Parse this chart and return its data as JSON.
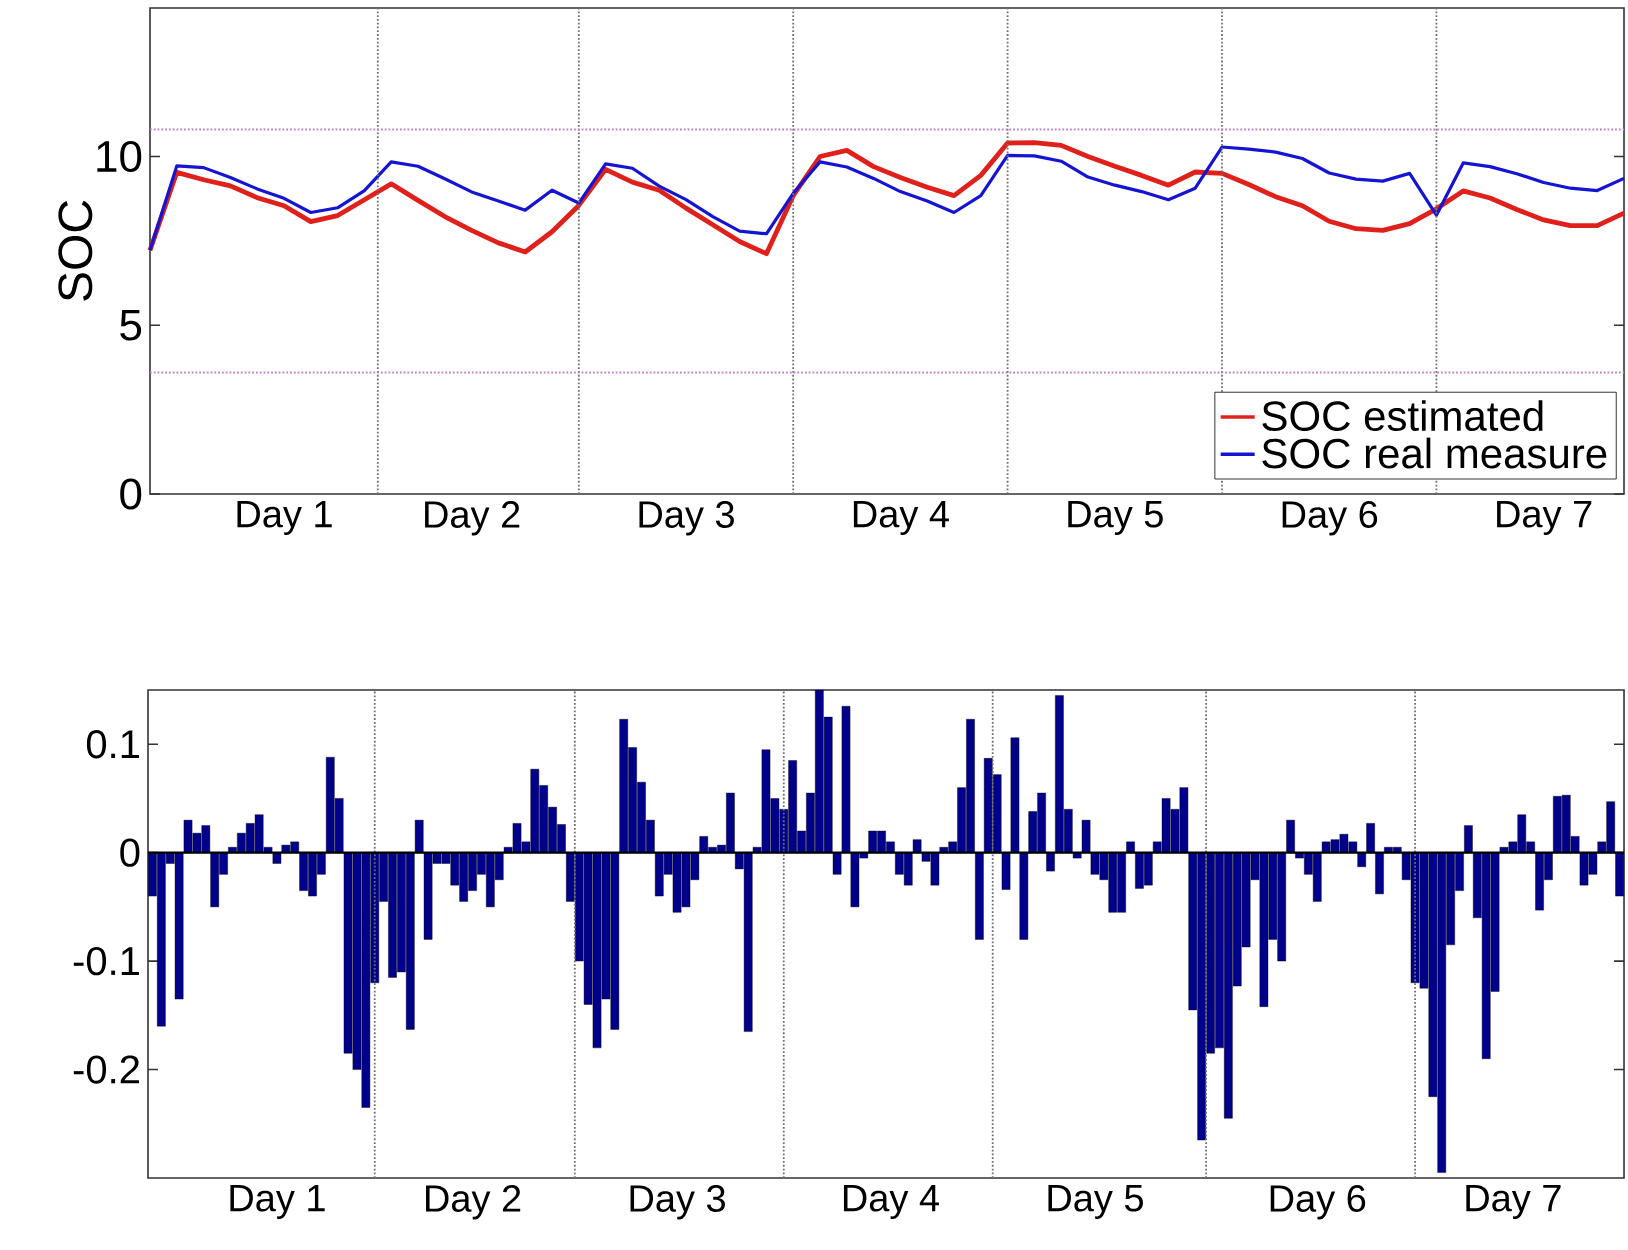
{
  "chart_data": [
    {
      "type": "line",
      "ylabel": "SOC",
      "ylim": [
        0,
        14.4
      ],
      "yticks": [
        0,
        5,
        10
      ],
      "categories": [
        null,
        null,
        null,
        null,
        null,
        "Day 1",
        null,
        null,
        null,
        null,
        null,
        null,
        "Day 2",
        null,
        null,
        null,
        null,
        null,
        null,
        null,
        "Day 3",
        null,
        null,
        null,
        null,
        null,
        null,
        null,
        "Day 4",
        null,
        null,
        null,
        null,
        null,
        null,
        null,
        "Day 5",
        null,
        null,
        null,
        null,
        null,
        null,
        null,
        "Day 6",
        null,
        null,
        null,
        null,
        null,
        null,
        null,
        "Day 7",
        null,
        null,
        null
      ],
      "ref_lines": [
        {
          "axis": "y",
          "value": 10.8,
          "color": "#c080c8",
          "line_style": "dotted"
        },
        {
          "axis": "y",
          "value": 3.6,
          "color": "#c080c8",
          "line_style": "dotted"
        }
      ],
      "legend": "bottom right",
      "series": [
        {
          "name": "SOC estimated",
          "color": "#e0201b",
          "values": [
            7.22,
            9.53,
            9.31,
            9.13,
            8.78,
            8.54,
            8.07,
            8.25,
            8.72,
            9.19,
            8.7,
            8.22,
            7.81,
            7.44,
            7.17,
            7.77,
            8.55,
            9.62,
            9.24,
            9.0,
            8.47,
            7.98,
            7.48,
            7.12,
            8.84,
            10.0,
            10.18,
            9.7,
            9.38,
            9.09,
            8.84,
            9.44,
            10.4,
            10.41,
            10.33,
            10.0,
            9.71,
            9.44,
            9.15,
            9.54,
            9.5,
            9.17,
            8.81,
            8.54,
            8.08,
            7.86,
            7.81,
            8.01,
            8.45,
            8.98,
            8.77,
            8.43,
            8.12,
            7.95,
            7.95,
            8.32
          ]
        },
        {
          "name": "SOC real measure",
          "color": "#1414d2",
          "values": [
            7.22,
            9.72,
            9.67,
            9.38,
            9.04,
            8.76,
            8.34,
            8.48,
            8.99,
            9.84,
            9.71,
            9.34,
            8.95,
            8.68,
            8.41,
            9.0,
            8.62,
            9.78,
            9.65,
            9.12,
            8.72,
            8.22,
            7.79,
            7.71,
            8.91,
            9.84,
            9.69,
            9.35,
            8.96,
            8.68,
            8.34,
            8.84,
            10.03,
            10.02,
            9.86,
            9.39,
            9.15,
            8.96,
            8.72,
            9.06,
            10.28,
            10.22,
            10.13,
            9.94,
            9.51,
            9.33,
            9.27,
            9.5,
            8.26,
            9.81,
            9.7,
            9.49,
            9.23,
            9.06,
            8.99,
            9.35
          ]
        }
      ]
    },
    {
      "type": "bar",
      "ylim": [
        -0.3,
        0.15
      ],
      "yticks": [
        -0.2,
        -0.1,
        0,
        0.1
      ],
      "color": "#00008b",
      "categories": [
        null,
        null,
        null,
        null,
        null,
        null,
        null,
        null,
        null,
        null,
        null,
        null,
        null,
        null,
        "Day 1",
        null,
        null,
        null,
        null,
        null,
        null,
        null,
        null,
        null,
        null,
        null,
        null,
        null,
        null,
        null,
        null,
        null,
        null,
        null,
        null,
        null,
        "Day 2",
        null,
        null,
        null,
        null,
        null,
        null,
        null,
        null,
        null,
        null,
        null,
        null,
        null,
        null,
        null,
        null,
        null,
        null,
        null,
        null,
        null,
        null,
        "Day 3",
        null,
        null,
        null,
        null,
        null,
        null,
        null,
        null,
        null,
        null,
        null,
        null,
        null,
        null,
        null,
        null,
        null,
        null,
        null,
        null,
        null,
        null,
        null,
        "Day 4",
        null,
        null,
        null,
        null,
        null,
        null,
        null,
        null,
        null,
        null,
        null,
        null,
        null,
        null,
        null,
        null,
        null,
        null,
        null,
        null,
        null,
        null,
        "Day 5",
        null,
        null,
        null,
        null,
        null,
        null,
        null,
        null,
        null,
        null,
        null,
        null,
        null,
        null,
        null,
        null,
        null,
        null,
        null,
        null,
        null,
        null,
        null,
        null,
        "Day 6",
        null,
        null,
        null,
        null,
        null,
        null,
        null,
        null,
        null,
        null,
        null,
        null,
        null,
        null,
        null,
        null,
        null,
        null,
        null,
        null,
        null,
        "Day 7",
        null,
        null,
        null,
        null,
        null,
        null,
        null,
        null,
        null,
        null,
        null,
        null
      ],
      "ref_lines": [
        {
          "axis": "y",
          "value": 0,
          "color": "#000000",
          "line_style": "solid"
        }
      ],
      "values": [
        -0.04,
        -0.16,
        -0.01,
        -0.135,
        0.03,
        0.018,
        0.025,
        -0.05,
        -0.02,
        0.005,
        0.018,
        0.027,
        0.035,
        0.005,
        -0.01,
        0.007,
        0.01,
        -0.035,
        -0.04,
        -0.02,
        0.088,
        0.05,
        -0.185,
        -0.2,
        -0.235,
        -0.12,
        -0.045,
        -0.115,
        -0.11,
        -0.163,
        0.03,
        -0.08,
        -0.01,
        -0.01,
        -0.03,
        -0.045,
        -0.035,
        -0.02,
        -0.05,
        -0.025,
        0.005,
        0.027,
        0.01,
        0.077,
        0.062,
        0.042,
        0.026,
        -0.045,
        -0.1,
        -0.14,
        -0.18,
        -0.135,
        -0.163,
        0.123,
        0.097,
        0.065,
        0.03,
        -0.04,
        -0.02,
        -0.055,
        -0.05,
        -0.025,
        0.015,
        0.005,
        0.007,
        0.055,
        -0.015,
        -0.165,
        0.005,
        0.095,
        0.05,
        0.04,
        0.085,
        0.02,
        0.055,
        0.15,
        0.125,
        -0.02,
        0.135,
        -0.05,
        -0.005,
        0.02,
        0.02,
        0.01,
        -0.02,
        -0.03,
        0.012,
        -0.008,
        -0.03,
        0.005,
        0.01,
        0.06,
        0.123,
        -0.08,
        0.087,
        0.072,
        -0.034,
        0.106,
        -0.08,
        0.038,
        0.055,
        -0.017,
        0.145,
        0.04,
        -0.005,
        0.03,
        -0.02,
        -0.025,
        -0.055,
        -0.055,
        0.01,
        -0.033,
        -0.03,
        0.01,
        0.05,
        0.04,
        0.06,
        -0.145,
        -0.265,
        -0.185,
        -0.18,
        -0.245,
        -0.123,
        -0.087,
        -0.025,
        -0.142,
        -0.08,
        -0.1,
        0.03,
        -0.005,
        -0.02,
        -0.045,
        0.01,
        0.012,
        0.017,
        0.01,
        -0.013,
        0.027,
        -0.038,
        0.005,
        0.005,
        -0.025,
        -0.12,
        -0.125,
        -0.225,
        -0.295,
        -0.085,
        -0.035,
        0.025,
        -0.06,
        -0.19,
        -0.128,
        0.005,
        0.01,
        0.035,
        0.01,
        -0.053,
        -0.025,
        0.052,
        0.053,
        0.015,
        -0.03,
        -0.02,
        0.01,
        0.047,
        -0.04
      ]
    }
  ]
}
